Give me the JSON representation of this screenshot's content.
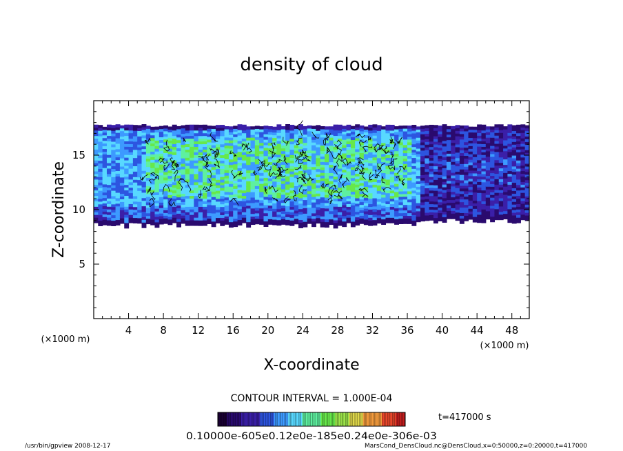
{
  "chart_data": {
    "type": "heatmap",
    "title": "density of cloud",
    "xlabel": "X-coordinate",
    "ylabel": "Z-coordinate",
    "x_unit": "(×1000 m)",
    "x_unit_right": "(×1000 m)",
    "x_ticks": [
      "4",
      "8",
      "12",
      "16",
      "20",
      "24",
      "28",
      "32",
      "36",
      "40",
      "44",
      "48"
    ],
    "y_ticks": [
      "5",
      "10",
      "15"
    ],
    "xlim": [
      0,
      50
    ],
    "ylim": [
      0,
      20
    ],
    "contour_interval": "CONTOUR INTERVAL = 1.000E-04",
    "time_label": "t=417000 s",
    "colorbar_labels": "0.10000e-605e0.12e0e-185e0.24e0e-306e-03",
    "colorbar_colors": [
      "#1a0033",
      "#2a0a6e",
      "#3b1fa8",
      "#2d55e0",
      "#3d9aff",
      "#58d8ff",
      "#5ef0a0",
      "#67e84a",
      "#9be34a",
      "#e0d84a",
      "#f29a3c",
      "#e8462a",
      "#c21e1e"
    ],
    "cloud_region": {
      "z_bottom_west": 8.8,
      "z_bottom_east": 9.2,
      "z_top": 17.6,
      "dense_core_x": [
        6,
        36
      ],
      "dense_core_z": [
        11,
        17
      ],
      "transition_x": 37
    }
  },
  "footer": {
    "left": "/usr/bin/gpview   2008-12-17",
    "right": "MarsCond_DensCloud.nc@DensCloud,x=0:50000,z=0:20000,t=417000"
  }
}
